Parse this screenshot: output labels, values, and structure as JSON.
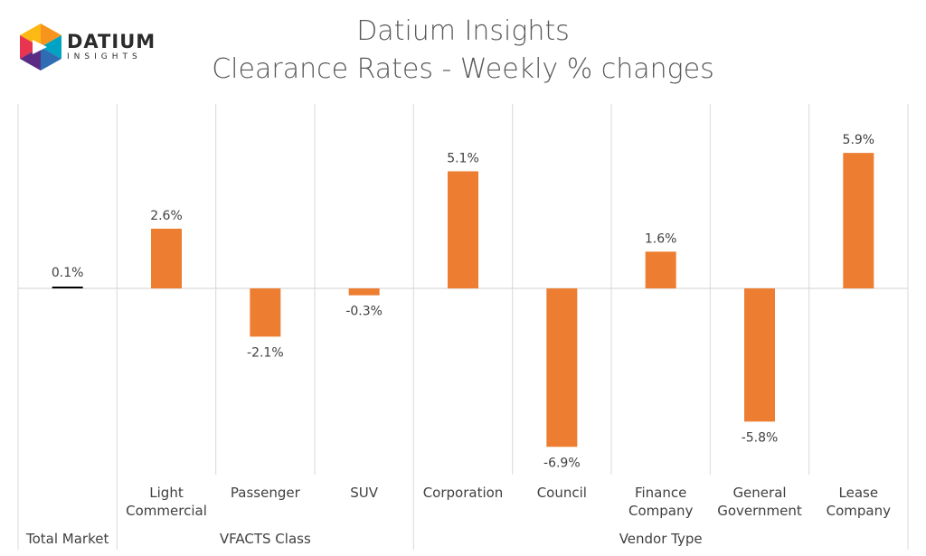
{
  "logo": {
    "name": "DATIUM",
    "sub": "INSIGHTS"
  },
  "title": "Datium Insights",
  "subtitle": "Clearance Rates - Weekly % changes",
  "chart_data": {
    "type": "bar",
    "categories": [
      "Total Market",
      "Light Commercial",
      "Passenger",
      "SUV",
      "Corporation",
      "Council",
      "Finance Company",
      "General Government",
      "Lease Company"
    ],
    "category_lines": [
      [
        "Total Market"
      ],
      [
        "Light",
        "Commercial"
      ],
      [
        "Passenger"
      ],
      [
        "SUV"
      ],
      [
        "Corporation"
      ],
      [
        "Council"
      ],
      [
        "Finance",
        "Company"
      ],
      [
        "General",
        "Government"
      ],
      [
        "Lease",
        "Company"
      ]
    ],
    "values": [
      0.1,
      2.6,
      -2.1,
      -0.3,
      5.1,
      -6.9,
      1.6,
      -5.8,
      5.9
    ],
    "data_labels": [
      "0.1%",
      "2.6%",
      "-2.1%",
      "-0.3%",
      "5.1%",
      "-6.9%",
      "1.6%",
      "-5.8%",
      "5.9%"
    ],
    "groups": [
      {
        "label": "",
        "members": [
          "Total Market"
        ]
      },
      {
        "label": "VFACTS Class",
        "members": [
          "Light Commercial",
          "Passenger",
          "SUV"
        ]
      },
      {
        "label": "Vendor Type",
        "members": [
          "Corporation",
          "Council",
          "Finance Company",
          "General Government",
          "Lease Company"
        ]
      }
    ],
    "colors": {
      "bar": "#ED7D31",
      "total_bar": "#000000",
      "gridline": "#D9D9D9",
      "axis": "#BFBFBF"
    },
    "ylim": [
      -8,
      8
    ],
    "grid": true,
    "legend": "none"
  }
}
